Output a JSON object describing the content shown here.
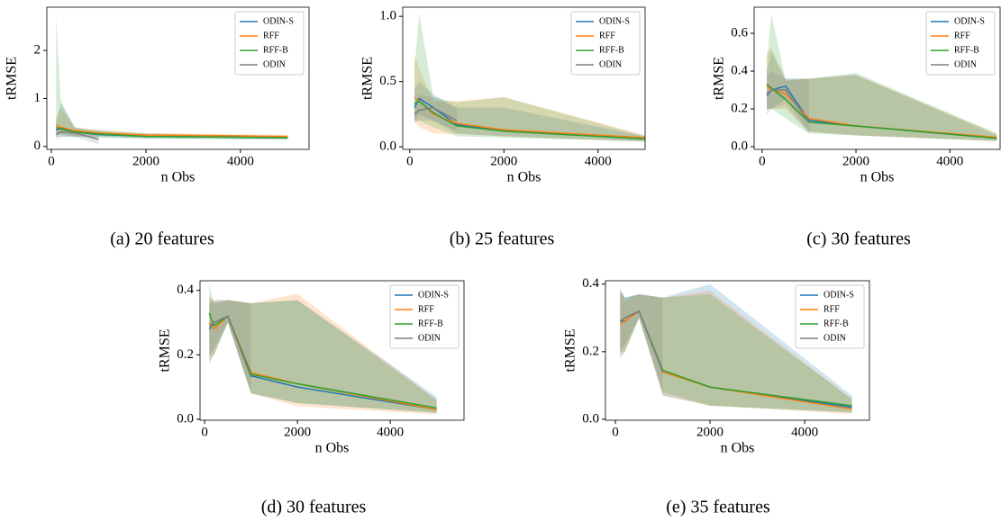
{
  "chart_data": [
    {
      "type": "line",
      "caption": "(a) 20 features",
      "xlabel": "n Obs",
      "ylabel": "tRMSE",
      "x": [
        100,
        200,
        500,
        1000,
        2000,
        5000
      ],
      "xlim": [
        -95,
        5450
      ],
      "xticks": [
        0,
        2000,
        4000
      ],
      "ylim": [
        -0.06,
        2.9
      ],
      "yticks": [
        0,
        1,
        2
      ],
      "legend": "upper right",
      "series": [
        {
          "name": "ODIN-S",
          "color": "#1f77b4",
          "values": [
            0.35,
            0.38,
            0.3,
            0.25,
            0.21,
            0.19
          ],
          "lower": [
            0.25,
            0.25,
            0.2,
            0.2,
            0.17,
            0.15
          ],
          "upper": [
            0.5,
            0.9,
            0.4,
            0.32,
            0.26,
            0.22
          ]
        },
        {
          "name": "RFF",
          "color": "#ff7f0e",
          "values": [
            0.45,
            0.4,
            0.33,
            0.28,
            0.24,
            0.21
          ],
          "lower": [
            0.3,
            0.28,
            0.22,
            0.22,
            0.19,
            0.18
          ],
          "upper": [
            0.6,
            0.8,
            0.4,
            0.35,
            0.28,
            0.24
          ]
        },
        {
          "name": "RFF-B",
          "color": "#2ca02c",
          "values": [
            0.4,
            0.36,
            0.3,
            0.26,
            0.21,
            0.18
          ],
          "lower": [
            0.2,
            0.2,
            0.2,
            0.18,
            0.16,
            0.14
          ],
          "upper": [
            2.7,
            0.95,
            0.38,
            0.33,
            0.27,
            0.22
          ]
        },
        {
          "name": "ODIN",
          "color": "#7f7f7f",
          "values": [
            0.25,
            0.3,
            0.28,
            0.15,
            null,
            null
          ],
          "lower": [
            0.15,
            0.2,
            0.2,
            0.05,
            null,
            null
          ],
          "upper": [
            0.35,
            0.4,
            0.35,
            0.3,
            null,
            null
          ]
        }
      ]
    },
    {
      "type": "line",
      "caption": "(b) 25 features",
      "xlabel": "n Obs",
      "ylabel": "tRMSE",
      "x": [
        100,
        200,
        500,
        1000,
        2000,
        5000
      ],
      "xlim": [
        -150,
        5000
      ],
      "xticks": [
        0,
        2000,
        4000
      ],
      "ylim": [
        -0.02,
        1.07
      ],
      "yticks": [
        {
          "value": 0,
          "label": "0.0"
        },
        {
          "value": 0.5,
          "label": "0.5"
        },
        {
          "value": 1,
          "label": "1.0"
        }
      ],
      "legend": "upper right",
      "series": [
        {
          "name": "ODIN-S",
          "color": "#1f77b4",
          "values": [
            0.3,
            0.37,
            0.3,
            0.17,
            0.12,
            0.06
          ],
          "lower": [
            0.2,
            0.25,
            0.2,
            0.1,
            0.08,
            0.04
          ],
          "upper": [
            0.45,
            0.5,
            0.4,
            0.3,
            0.3,
            0.08
          ]
        },
        {
          "name": "RFF",
          "color": "#ff7f0e",
          "values": [
            0.38,
            0.35,
            0.25,
            0.18,
            0.13,
            0.07
          ],
          "lower": [
            0.2,
            0.15,
            0.1,
            0.1,
            0.08,
            0.04
          ],
          "upper": [
            0.7,
            0.6,
            0.35,
            0.35,
            0.38,
            0.09
          ]
        },
        {
          "name": "RFF-B",
          "color": "#2ca02c",
          "values": [
            0.33,
            0.35,
            0.26,
            0.16,
            0.12,
            0.06
          ],
          "lower": [
            0.2,
            0.2,
            0.15,
            0.08,
            0.07,
            0.04
          ],
          "upper": [
            0.6,
            1.02,
            0.38,
            0.34,
            0.38,
            0.08
          ]
        },
        {
          "name": "ODIN",
          "color": "#7f7f7f",
          "values": [
            0.25,
            0.28,
            0.3,
            0.2,
            null,
            null
          ],
          "lower": [
            0.18,
            0.2,
            0.2,
            0.12,
            null,
            null
          ],
          "upper": [
            0.35,
            0.4,
            0.38,
            0.3,
            null,
            null
          ]
        }
      ]
    },
    {
      "type": "line",
      "caption": "(c) 30 features",
      "xlabel": "n Obs",
      "ylabel": "tRMSE",
      "x": [
        100,
        200,
        500,
        1000,
        2000,
        5000
      ],
      "xlim": [
        -170,
        5070
      ],
      "xticks": [
        0,
        2000,
        4000
      ],
      "ylim": [
        -0.014,
        0.738
      ],
      "yticks": [
        {
          "value": 0,
          "label": "0.0"
        },
        {
          "value": 0.2,
          "label": "0.2"
        },
        {
          "value": 0.4,
          "label": "0.4"
        },
        {
          "value": 0.6,
          "label": "0.6"
        }
      ],
      "legend": "upper right",
      "series": [
        {
          "name": "ODIN-S",
          "color": "#1f77b4",
          "values": [
            0.27,
            0.3,
            0.32,
            0.14,
            0.11,
            0.045
          ],
          "lower": [
            0.2,
            0.2,
            0.25,
            0.08,
            0.06,
            0.03
          ],
          "upper": [
            0.4,
            0.5,
            0.36,
            0.36,
            0.38,
            0.06
          ]
        },
        {
          "name": "RFF",
          "color": "#ff7f0e",
          "values": [
            0.32,
            0.3,
            0.28,
            0.15,
            0.11,
            0.05
          ],
          "lower": [
            0.2,
            0.2,
            0.2,
            0.08,
            0.06,
            0.03
          ],
          "upper": [
            0.5,
            0.52,
            0.35,
            0.36,
            0.38,
            0.07
          ]
        },
        {
          "name": "RFF-B",
          "color": "#2ca02c",
          "values": [
            0.33,
            0.31,
            0.25,
            0.13,
            0.11,
            0.045
          ],
          "lower": [
            0.2,
            0.2,
            0.15,
            0.07,
            0.06,
            0.03
          ],
          "upper": [
            0.45,
            0.7,
            0.35,
            0.36,
            0.39,
            0.07
          ]
        },
        {
          "name": "ODIN",
          "color": "#7f7f7f",
          "values": [
            0.28,
            0.3,
            0.3,
            0.13,
            null,
            null
          ],
          "lower": [
            0.17,
            0.2,
            0.22,
            0.07,
            null,
            null
          ],
          "upper": [
            0.38,
            0.4,
            0.36,
            0.36,
            null,
            null
          ]
        }
      ]
    },
    {
      "type": "line",
      "caption": "(d) 30 features",
      "xlabel": "n Obs",
      "ylabel": "tRMSE",
      "x": [
        100,
        200,
        500,
        1000,
        2000,
        5000
      ],
      "xlim": [
        -100,
        5590
      ],
      "xticks": [
        0,
        2000,
        4000
      ],
      "ylim": [
        -0.003,
        0.43
      ],
      "yticks": [
        {
          "value": 0,
          "label": "0.0"
        },
        {
          "value": 0.2,
          "label": "0.2"
        },
        {
          "value": 0.4,
          "label": "0.4"
        }
      ],
      "legend": "upper right",
      "series": [
        {
          "name": "ODIN-S",
          "color": "#1f77b4",
          "values": [
            0.28,
            0.3,
            0.32,
            0.135,
            0.1,
            0.03
          ],
          "lower": [
            0.2,
            0.22,
            0.3,
            0.08,
            0.05,
            0.02
          ],
          "upper": [
            0.36,
            0.37,
            0.37,
            0.36,
            0.37,
            0.07
          ]
        },
        {
          "name": "RFF",
          "color": "#ff7f0e",
          "values": [
            0.3,
            0.28,
            0.32,
            0.145,
            0.11,
            0.03
          ],
          "lower": [
            0.2,
            0.2,
            0.3,
            0.08,
            0.04,
            0.015
          ],
          "upper": [
            0.38,
            0.37,
            0.37,
            0.36,
            0.39,
            0.06
          ]
        },
        {
          "name": "RFF-B",
          "color": "#2ca02c",
          "values": [
            0.33,
            0.29,
            0.32,
            0.14,
            0.11,
            0.035
          ],
          "lower": [
            0.18,
            0.2,
            0.3,
            0.08,
            0.05,
            0.02
          ],
          "upper": [
            0.42,
            0.36,
            0.37,
            0.36,
            0.37,
            0.06
          ]
        },
        {
          "name": "ODIN",
          "color": "#7f7f7f",
          "values": [
            0.29,
            0.3,
            0.32,
            0.13,
            null,
            null
          ],
          "lower": [
            0.17,
            0.2,
            0.3,
            0.08,
            null,
            null
          ],
          "upper": [
            0.38,
            0.36,
            0.37,
            0.36,
            null,
            null
          ]
        }
      ]
    },
    {
      "type": "line",
      "caption": "(e) 35 features",
      "xlabel": "n Obs",
      "ylabel": "tRMSE",
      "x": [
        100,
        200,
        500,
        1000,
        2000,
        5000
      ],
      "xlim": [
        -210,
        5370
      ],
      "xticks": [
        0,
        2000,
        4000
      ],
      "ylim": [
        -0.003,
        0.41
      ],
      "yticks": [
        {
          "value": 0,
          "label": "0.0"
        },
        {
          "value": 0.2,
          "label": "0.2"
        },
        {
          "value": 0.4,
          "label": "0.4"
        }
      ],
      "legend": "upper right",
      "series": [
        {
          "name": "ODIN-S",
          "color": "#1f77b4",
          "values": [
            0.29,
            0.29,
            0.32,
            0.14,
            0.095,
            0.035
          ],
          "lower": [
            0.2,
            0.22,
            0.3,
            0.07,
            0.04,
            0.02
          ],
          "upper": [
            0.38,
            0.36,
            0.37,
            0.36,
            0.4,
            0.07
          ]
        },
        {
          "name": "RFF",
          "color": "#ff7f0e",
          "values": [
            0.28,
            0.29,
            0.32,
            0.14,
            0.095,
            0.03
          ],
          "lower": [
            0.2,
            0.2,
            0.3,
            0.07,
            0.04,
            0.015
          ],
          "upper": [
            0.38,
            0.35,
            0.37,
            0.36,
            0.38,
            0.06
          ]
        },
        {
          "name": "RFF-B",
          "color": "#2ca02c",
          "values": [
            0.29,
            0.3,
            0.32,
            0.145,
            0.095,
            0.04
          ],
          "lower": [
            0.19,
            0.2,
            0.3,
            0.08,
            0.04,
            0.02
          ],
          "upper": [
            0.39,
            0.36,
            0.37,
            0.36,
            0.37,
            0.06
          ]
        },
        {
          "name": "ODIN",
          "color": "#7f7f7f",
          "values": [
            0.29,
            0.3,
            0.32,
            0.14,
            null,
            null
          ],
          "lower": [
            0.18,
            0.2,
            0.3,
            0.08,
            null,
            null
          ],
          "upper": [
            0.38,
            0.36,
            0.37,
            0.36,
            null,
            null
          ]
        }
      ]
    }
  ]
}
